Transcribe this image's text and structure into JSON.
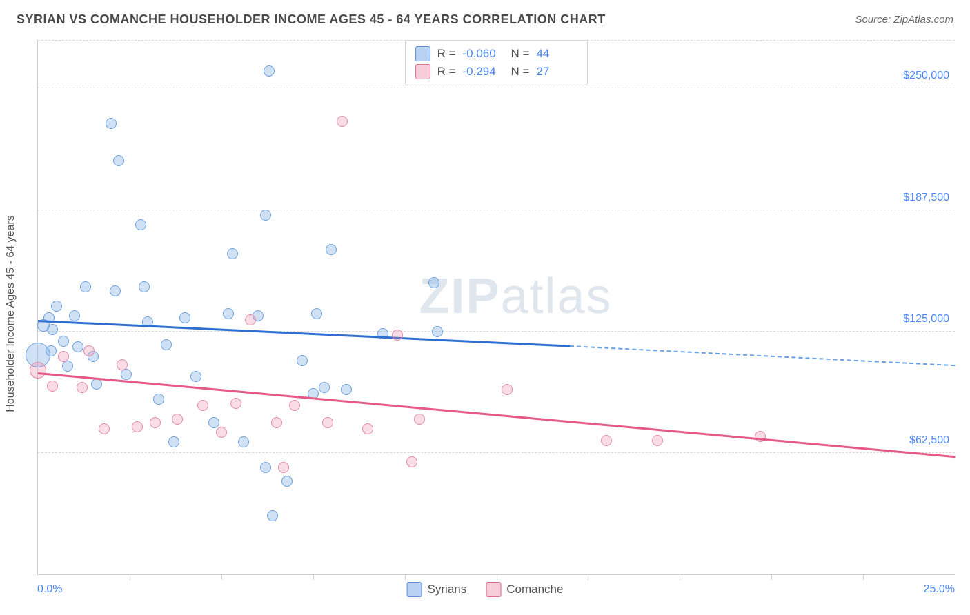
{
  "header": {
    "title": "SYRIAN VS COMANCHE HOUSEHOLDER INCOME AGES 45 - 64 YEARS CORRELATION CHART",
    "source": "Source: ZipAtlas.com"
  },
  "chart": {
    "type": "scatter",
    "y_axis_title": "Householder Income Ages 45 - 64 years",
    "watermark": {
      "bold": "ZIP",
      "rest": "atlas"
    },
    "background_color": "#ffffff",
    "grid_color": "#d9d9d9",
    "axis_color": "#cfcfcf",
    "label_color": "#4a86f7",
    "title_color": "#4a4a4a",
    "xlim": [
      0,
      25
    ],
    "ylim": [
      0,
      275000
    ],
    "x_min_label": "0.0%",
    "x_max_label": "25.0%",
    "x_ticks": [
      2.5,
      5.0,
      7.5,
      10.0,
      12.5,
      15.0,
      17.5,
      20.0,
      22.5
    ],
    "y_ticks": [
      {
        "v": 62500,
        "label": "$62,500"
      },
      {
        "v": 125000,
        "label": "$125,000"
      },
      {
        "v": 187500,
        "label": "$187,500"
      },
      {
        "v": 250000,
        "label": "$250,000"
      }
    ],
    "series": [
      {
        "key": "syrians",
        "name": "Syrians",
        "color": "#6da2e0",
        "fill": "rgba(120,170,230,0.35)",
        "r_label": "R =",
        "r_value": "-0.060",
        "n_label": "N =",
        "n_value": "44",
        "trend": {
          "x0": 0,
          "y0": 130000,
          "x1": 14.5,
          "y1": 117000,
          "color": "#2f6fd0",
          "width": 3
        },
        "trend_ext": {
          "x0": 14.5,
          "y0": 117000,
          "x1": 25,
          "y1": 107000
        },
        "points": [
          {
            "x": 0.0,
            "y": 113000,
            "r": 18
          },
          {
            "x": 0.15,
            "y": 128000,
            "r": 9
          },
          {
            "x": 0.3,
            "y": 132000,
            "r": 8
          },
          {
            "x": 0.35,
            "y": 115000,
            "r": 8
          },
          {
            "x": 0.4,
            "y": 126000,
            "r": 8
          },
          {
            "x": 0.5,
            "y": 138000,
            "r": 8
          },
          {
            "x": 0.7,
            "y": 120000,
            "r": 8
          },
          {
            "x": 0.8,
            "y": 107000,
            "r": 8
          },
          {
            "x": 1.0,
            "y": 133000,
            "r": 8
          },
          {
            "x": 1.1,
            "y": 117000,
            "r": 8
          },
          {
            "x": 1.3,
            "y": 148000,
            "r": 8
          },
          {
            "x": 1.5,
            "y": 112000,
            "r": 8
          },
          {
            "x": 1.6,
            "y": 98000,
            "r": 8
          },
          {
            "x": 2.0,
            "y": 232000,
            "r": 8
          },
          {
            "x": 2.1,
            "y": 146000,
            "r": 8
          },
          {
            "x": 2.2,
            "y": 213000,
            "r": 8
          },
          {
            "x": 2.4,
            "y": 103000,
            "r": 8
          },
          {
            "x": 2.8,
            "y": 180000,
            "r": 8
          },
          {
            "x": 2.9,
            "y": 148000,
            "r": 8
          },
          {
            "x": 3.0,
            "y": 130000,
            "r": 8
          },
          {
            "x": 3.3,
            "y": 90000,
            "r": 8
          },
          {
            "x": 3.5,
            "y": 118000,
            "r": 8
          },
          {
            "x": 3.7,
            "y": 68000,
            "r": 8
          },
          {
            "x": 4.0,
            "y": 132000,
            "r": 8
          },
          {
            "x": 4.3,
            "y": 102000,
            "r": 8
          },
          {
            "x": 4.8,
            "y": 78000,
            "r": 8
          },
          {
            "x": 5.2,
            "y": 134000,
            "r": 8
          },
          {
            "x": 5.3,
            "y": 165000,
            "r": 8
          },
          {
            "x": 5.6,
            "y": 68000,
            "r": 8
          },
          {
            "x": 6.0,
            "y": 133000,
            "r": 8
          },
          {
            "x": 6.2,
            "y": 55000,
            "r": 8
          },
          {
            "x": 6.2,
            "y": 185000,
            "r": 8
          },
          {
            "x": 6.3,
            "y": 259000,
            "r": 8
          },
          {
            "x": 6.4,
            "y": 30000,
            "r": 8
          },
          {
            "x": 6.8,
            "y": 48000,
            "r": 8
          },
          {
            "x": 7.2,
            "y": 110000,
            "r": 8
          },
          {
            "x": 7.5,
            "y": 93000,
            "r": 8
          },
          {
            "x": 7.6,
            "y": 134000,
            "r": 8
          },
          {
            "x": 7.8,
            "y": 96000,
            "r": 8
          },
          {
            "x": 8.0,
            "y": 167000,
            "r": 8
          },
          {
            "x": 8.4,
            "y": 95000,
            "r": 8
          },
          {
            "x": 9.4,
            "y": 124000,
            "r": 8
          },
          {
            "x": 10.8,
            "y": 150000,
            "r": 8
          },
          {
            "x": 10.9,
            "y": 125000,
            "r": 8
          }
        ]
      },
      {
        "key": "comanche",
        "name": "Comanche",
        "color": "#e48aa8",
        "fill": "rgba(235,140,170,0.30)",
        "r_label": "R =",
        "r_value": "-0.294",
        "n_label": "N =",
        "n_value": "27",
        "trend": {
          "x0": 0,
          "y0": 103000,
          "x1": 25,
          "y1": 60000,
          "color": "#e55a87",
          "width": 3
        },
        "points": [
          {
            "x": 0.0,
            "y": 105000,
            "r": 12
          },
          {
            "x": 0.4,
            "y": 97000,
            "r": 8
          },
          {
            "x": 0.7,
            "y": 112000,
            "r": 8
          },
          {
            "x": 1.2,
            "y": 96000,
            "r": 8
          },
          {
            "x": 1.4,
            "y": 115000,
            "r": 8
          },
          {
            "x": 1.8,
            "y": 75000,
            "r": 8
          },
          {
            "x": 2.3,
            "y": 108000,
            "r": 8
          },
          {
            "x": 2.7,
            "y": 76000,
            "r": 8
          },
          {
            "x": 3.2,
            "y": 78000,
            "r": 8
          },
          {
            "x": 3.8,
            "y": 80000,
            "r": 8
          },
          {
            "x": 4.5,
            "y": 87000,
            "r": 8
          },
          {
            "x": 5.0,
            "y": 73000,
            "r": 8
          },
          {
            "x": 5.4,
            "y": 88000,
            "r": 8
          },
          {
            "x": 5.8,
            "y": 131000,
            "r": 8
          },
          {
            "x": 6.5,
            "y": 78000,
            "r": 8
          },
          {
            "x": 6.7,
            "y": 55000,
            "r": 8
          },
          {
            "x": 7.0,
            "y": 87000,
            "r": 8
          },
          {
            "x": 7.9,
            "y": 78000,
            "r": 8
          },
          {
            "x": 8.3,
            "y": 233000,
            "r": 8
          },
          {
            "x": 9.0,
            "y": 75000,
            "r": 8
          },
          {
            "x": 9.8,
            "y": 123000,
            "r": 8
          },
          {
            "x": 10.2,
            "y": 58000,
            "r": 8
          },
          {
            "x": 10.4,
            "y": 80000,
            "r": 8
          },
          {
            "x": 12.8,
            "y": 95000,
            "r": 8
          },
          {
            "x": 15.5,
            "y": 69000,
            "r": 8
          },
          {
            "x": 16.9,
            "y": 69000,
            "r": 8
          },
          {
            "x": 19.7,
            "y": 71000,
            "r": 8
          }
        ]
      }
    ]
  }
}
